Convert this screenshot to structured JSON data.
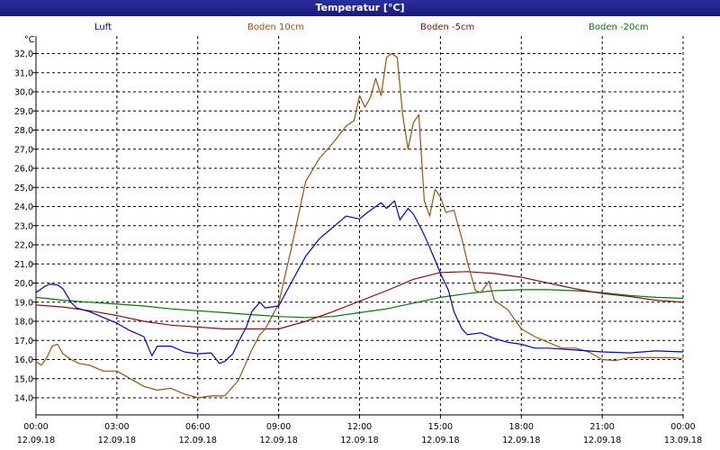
{
  "window": {
    "title": "Temperatur [°C]"
  },
  "chart_data": {
    "type": "line",
    "title": "Temperatur [°C]",
    "ylabel": "°C",
    "ylim": [
      14.0,
      32.0
    ],
    "y_ticks": [
      "14,0",
      "15,0",
      "16,0",
      "17,0",
      "18,0",
      "19,0",
      "20,0",
      "21,0",
      "22,0",
      "23,0",
      "24,0",
      "25,0",
      "26,0",
      "27,0",
      "28,0",
      "29,0",
      "30,0",
      "31,0",
      "32,0"
    ],
    "x_ticks": [
      {
        "time": "00:00",
        "date": "12.09.18"
      },
      {
        "time": "03:00",
        "date": "12.09.18"
      },
      {
        "time": "06:00",
        "date": "12.09.18"
      },
      {
        "time": "09:00",
        "date": "12.09.18"
      },
      {
        "time": "12:00",
        "date": "12.09.18"
      },
      {
        "time": "15:00",
        "date": "12.09.18"
      },
      {
        "time": "18:00",
        "date": "12.09.18"
      },
      {
        "time": "21:00",
        "date": "12.09.18"
      },
      {
        "time": "00:00",
        "date": "13.09.18"
      }
    ],
    "xlim_hours": [
      0,
      24
    ],
    "grid": true,
    "series": [
      {
        "name": "Luft",
        "color": "#0000cc",
        "x": [
          0,
          0.3,
          0.5,
          0.8,
          1,
          1.3,
          1.5,
          2,
          2.5,
          3,
          3.5,
          4,
          4.3,
          4.5,
          5,
          5.5,
          6,
          6.5,
          6.8,
          7,
          7.3,
          7.5,
          7.8,
          8,
          8.3,
          8.5,
          9,
          9.5,
          10,
          10.5,
          11,
          11.5,
          12,
          12.3,
          12.5,
          12.8,
          13,
          13.3,
          13.5,
          13.8,
          14,
          14.3,
          14.5,
          14.8,
          15,
          15.3,
          15.5,
          15.8,
          16,
          16.5,
          17,
          17.5,
          18,
          18.5,
          19,
          20,
          21,
          22,
          23,
          24
        ],
        "y": [
          19.5,
          19.8,
          19.95,
          19.9,
          19.7,
          19.0,
          18.7,
          18.5,
          18.2,
          17.9,
          17.5,
          17.2,
          16.2,
          16.7,
          16.7,
          16.4,
          16.3,
          16.35,
          15.8,
          15.9,
          16.3,
          16.9,
          17.7,
          18.5,
          19.0,
          18.7,
          18.8,
          20.1,
          21.4,
          22.3,
          22.9,
          23.5,
          23.35,
          23.7,
          23.9,
          24.2,
          23.9,
          24.3,
          23.3,
          23.9,
          23.6,
          22.8,
          22.2,
          21.2,
          20.5,
          19.6,
          18.5,
          17.6,
          17.3,
          17.4,
          17.1,
          16.9,
          16.8,
          16.6,
          16.6,
          16.5,
          16.4,
          16.35,
          16.45,
          16.4
        ]
      },
      {
        "name": "Boden 10cm",
        "color": "#a0520a",
        "x": [
          0,
          0.2,
          0.4,
          0.6,
          0.8,
          1,
          1.3,
          1.6,
          2,
          2.5,
          3,
          3.5,
          4,
          4.5,
          5,
          5.5,
          6,
          6.5,
          7,
          7.5,
          8,
          8.3,
          8.5,
          9,
          9.5,
          10,
          10.5,
          11,
          11.5,
          11.8,
          12,
          12.2,
          12.4,
          12.6,
          12.8,
          13,
          13.2,
          13.4,
          13.6,
          13.8,
          14,
          14.2,
          14.4,
          14.6,
          14.8,
          15,
          15.2,
          15.5,
          15.8,
          16,
          16.3,
          16.5,
          16.8,
          17,
          17.3,
          17.5,
          17.8,
          18,
          18.5,
          19,
          19.5,
          20,
          20.5,
          21,
          21.5,
          22,
          22.5,
          23,
          23.5,
          24
        ],
        "y": [
          15.9,
          15.7,
          16.1,
          16.7,
          16.8,
          16.3,
          16.0,
          15.8,
          15.7,
          15.4,
          15.4,
          15.0,
          14.6,
          14.4,
          14.5,
          14.2,
          14.0,
          14.1,
          14.1,
          14.9,
          16.5,
          17.3,
          17.6,
          18.9,
          22.0,
          25.3,
          26.5,
          27.3,
          28.2,
          28.5,
          29.8,
          29.2,
          29.7,
          30.7,
          29.8,
          31.8,
          32.0,
          31.8,
          28.8,
          27.0,
          28.4,
          28.8,
          24.3,
          23.5,
          24.9,
          24.5,
          23.7,
          23.8,
          22.3,
          21.1,
          19.6,
          19.5,
          20.1,
          19.1,
          18.8,
          18.6,
          18.0,
          17.6,
          17.2,
          16.9,
          16.6,
          16.6,
          16.4,
          16.0,
          15.95,
          16.1,
          16.1,
          16.1,
          16.1,
          16.05
        ]
      },
      {
        "name": "Boden -5cm",
        "color": "#8b1010",
        "x": [
          0,
          1,
          2,
          3,
          4,
          5,
          6,
          7,
          8,
          9,
          10,
          11,
          12,
          13,
          14,
          15,
          16,
          17,
          18,
          19,
          20,
          21,
          22,
          23,
          24
        ],
        "y": [
          18.85,
          18.75,
          18.55,
          18.3,
          18.0,
          17.8,
          17.7,
          17.6,
          17.6,
          17.6,
          18.0,
          18.5,
          19.05,
          19.6,
          20.2,
          20.55,
          20.6,
          20.5,
          20.3,
          20.0,
          19.7,
          19.45,
          19.3,
          19.1,
          19.0
        ]
      },
      {
        "name": "Boden -20cm",
        "color": "#007a00",
        "x": [
          0,
          1,
          2,
          3,
          4,
          5,
          6,
          7,
          8,
          9,
          10,
          11,
          12,
          13,
          14,
          15,
          16,
          17,
          18,
          19,
          20,
          21,
          22,
          23,
          24
        ],
        "y": [
          19.25,
          19.1,
          19.0,
          18.9,
          18.8,
          18.65,
          18.55,
          18.45,
          18.35,
          18.25,
          18.2,
          18.25,
          18.45,
          18.65,
          18.95,
          19.25,
          19.45,
          19.6,
          19.65,
          19.65,
          19.6,
          19.5,
          19.35,
          19.25,
          19.2
        ]
      }
    ]
  }
}
